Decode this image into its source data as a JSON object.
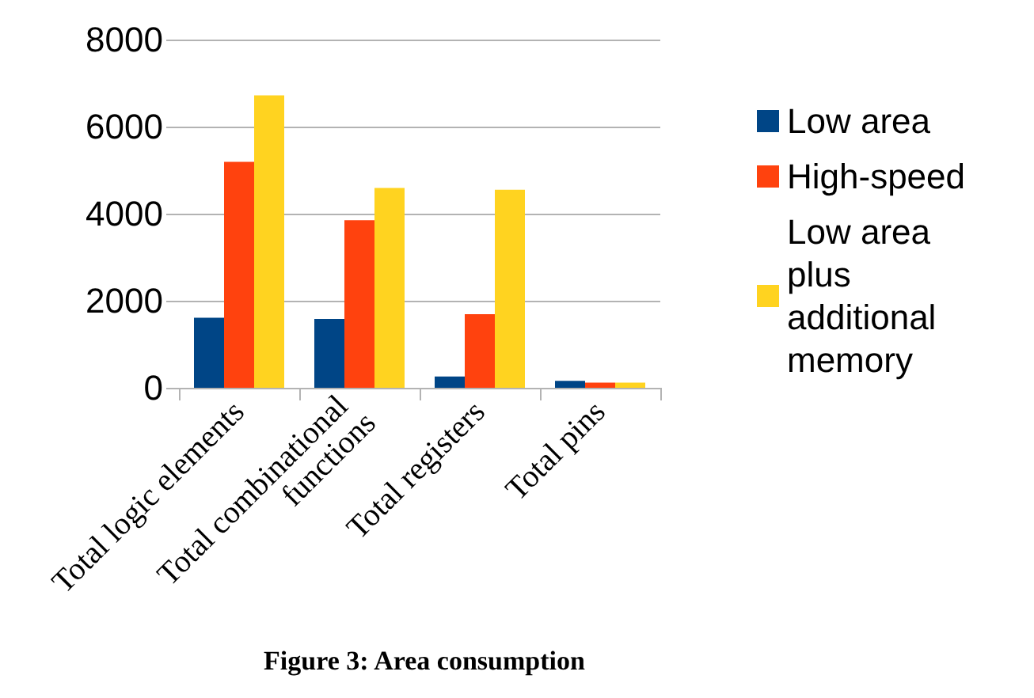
{
  "chart_data": {
    "type": "bar",
    "title": "Figure 3: Area consumption",
    "categories": [
      "Total logic elements",
      "Total combinational functions",
      "Total registers",
      "Total pins"
    ],
    "series": [
      {
        "name": "Low area",
        "color": "#004586",
        "values": [
          1610,
          1580,
          260,
          160
        ]
      },
      {
        "name": "High-speed",
        "color": "#ff420e",
        "values": [
          5190,
          3850,
          1690,
          120
        ]
      },
      {
        "name": "Low area plus additional memory",
        "color": "#ffd320",
        "values": [
          6720,
          4590,
          4550,
          120
        ]
      }
    ],
    "ylim": [
      0,
      8000
    ],
    "yticks": [
      0,
      2000,
      4000,
      6000,
      8000
    ],
    "grid": "y",
    "legend": "right"
  }
}
